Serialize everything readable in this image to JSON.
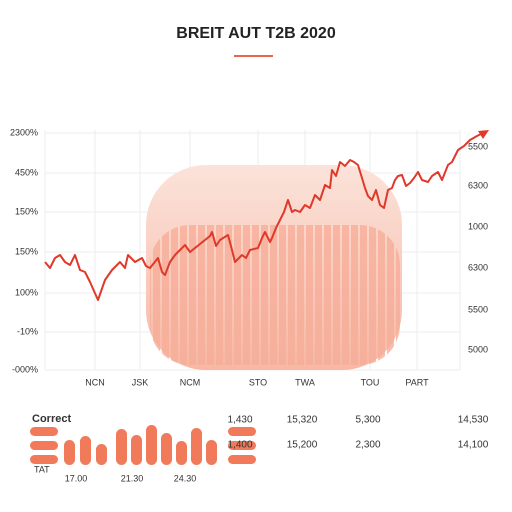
{
  "header": {
    "title": "BREIT AUT T2B 2020"
  },
  "chart": {
    "left_axis": [
      "2300%",
      "450%",
      "150%",
      "150%",
      "100%",
      "-10%",
      "-000%"
    ],
    "right_axis": [
      "5500",
      "6300",
      "1000",
      "6300",
      "5500",
      "5000"
    ],
    "x_axis": [
      "NCN",
      "JSK",
      "NCM",
      "STO",
      "TWA",
      "TOU",
      "PART"
    ]
  },
  "footer": {
    "label": "Correct",
    "sub_label": "TAT",
    "times": [
      "17.00",
      "21.30",
      "24.30"
    ],
    "rows": [
      [
        "1,430",
        "15,320",
        "5,300",
        "14,530"
      ],
      [
        "1,400",
        "15,200",
        "2,300",
        "14,100"
      ]
    ]
  }
}
